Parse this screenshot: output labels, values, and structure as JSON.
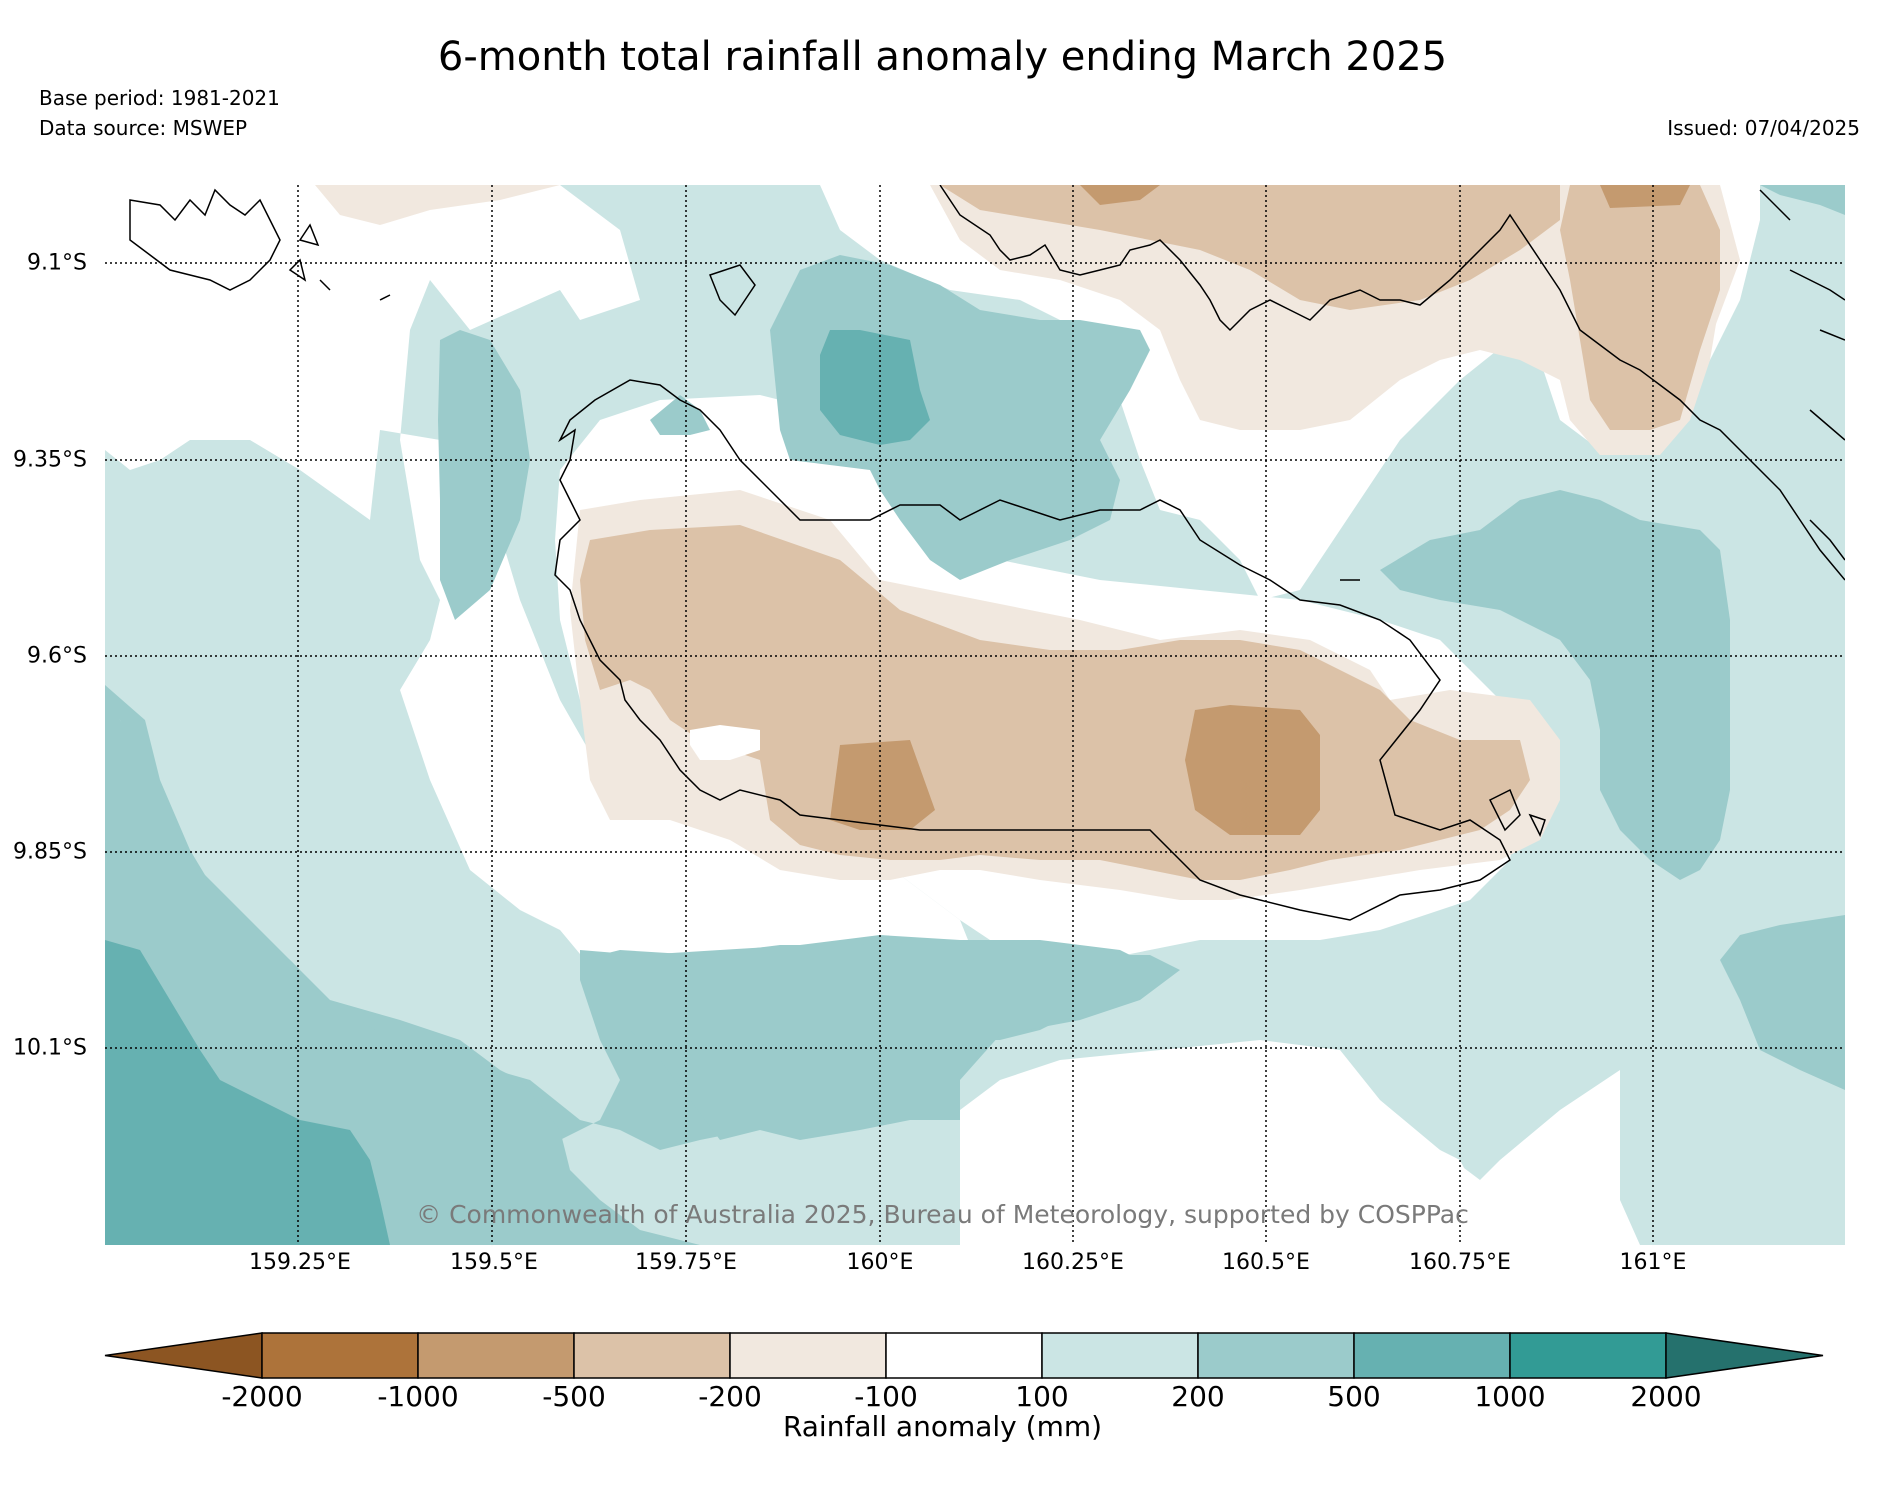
{
  "title": "6-month total rainfall anomaly ending March 2025",
  "base_period": "Base period: 1981-2021",
  "data_source": "Data source: MSWEP",
  "issued": "Issued: 07/04/2025",
  "copyright": "© Commonwealth of Australia 2025, Bureau of Meteorology, supported by COSPPac",
  "colorbar": {
    "title": "Rainfall anomaly (mm)",
    "ticks": [
      "-2000",
      "-1000",
      "-500",
      "-200",
      "-100",
      "100",
      "200",
      "500",
      "1000",
      "2000"
    ],
    "colors": [
      "#8c5522",
      "#ad733a",
      "#c49a6f",
      "#dcc2a8",
      "#f1e8df",
      "#ffffff",
      "#cbe5e4",
      "#9bcbcb",
      "#66b1b1",
      "#329b95",
      "#25716d"
    ]
  },
  "map": {
    "lon_ticks": [
      "159.25°E",
      "159.5°E",
      "159.75°E",
      "160°E",
      "160.25°E",
      "160.5°E",
      "160.75°E",
      "161°E"
    ],
    "lat_ticks": [
      "9.1°S",
      "9.35°S",
      "9.6°S",
      "9.85°S",
      "10.1°S"
    ],
    "lon_values": [
      159.25,
      159.5,
      159.75,
      160.0,
      160.25,
      160.5,
      160.75,
      161.0
    ],
    "lat_values": [
      -9.1,
      -9.35,
      -9.6,
      -9.85,
      -10.1
    ]
  }
}
